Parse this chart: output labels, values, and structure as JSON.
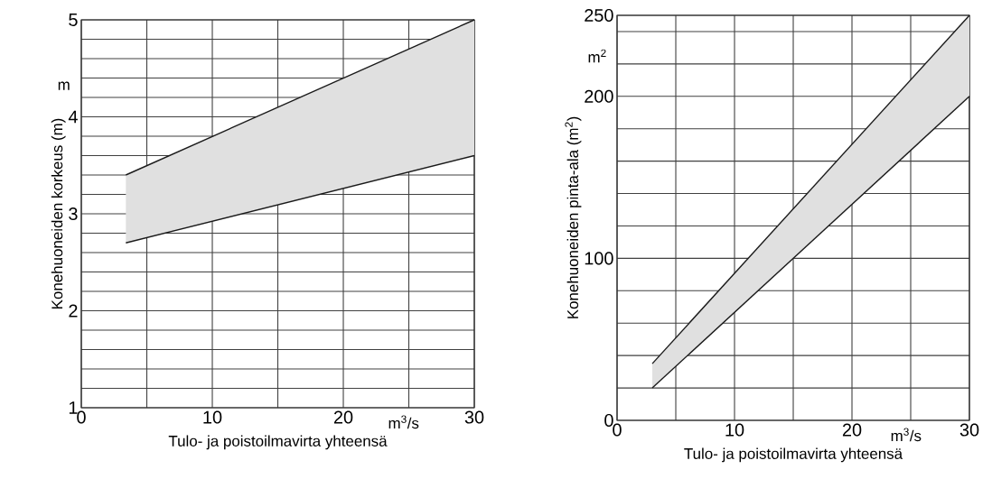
{
  "chart_data": [
    {
      "type": "line",
      "xlabel": "Tulo- ja poistoilmavirta yhteensä",
      "ylabel": "Konehuoneiden korkeus (m)",
      "annotations": [
        "m",
        "m$^{3}$/s"
      ],
      "series": [
        {
          "color": "#1a1a1a",
          "x": [
            3.4,
            30
          ],
          "values": [
            3.4,
            5
          ]
        },
        {
          "color": "#1a1a1a",
          "x": [
            3.4,
            30
          ],
          "values": [
            2.7,
            3.6
          ]
        },
        {
          "color": "#e0e0e0",
          "x": [
            3.4,
            30
          ],
          "values": [
            null,
            null
          ],
          "lower": [
            2.7,
            3.6
          ],
          "upper": [
            3.4,
            5
          ]
        }
      ],
      "xlim": [
        0,
        30
      ],
      "xticks": [
        0,
        {
          "value": 5,
          "label": null
        },
        10,
        {
          "value": 15,
          "label": null
        },
        20,
        {
          "value": 25,
          "label": null
        },
        30
      ],
      "ylim": [
        1,
        5
      ],
      "yticks": [
        1,
        {
          "value": 1.2,
          "label": null
        },
        {
          "value": 1.4,
          "label": null
        },
        {
          "value": 1.6,
          "label": null
        },
        {
          "value": 1.8,
          "label": null
        },
        2,
        {
          "value": 2.2,
          "label": null
        },
        {
          "value": 2.4,
          "label": null
        },
        {
          "value": 2.6,
          "label": null
        },
        {
          "value": 2.8,
          "label": null
        },
        3,
        {
          "value": 3.2,
          "label": null
        },
        {
          "value": 3.4,
          "label": null
        },
        {
          "value": 3.6,
          "label": null
        },
        {
          "value": 3.8,
          "label": null
        },
        4,
        {
          "value": 4.2,
          "label": null
        },
        {
          "value": 4.4,
          "label": null
        },
        {
          "value": 4.6,
          "label": null
        },
        {
          "value": 4.8,
          "label": null
        },
        5
      ],
      "grid": true
    },
    {
      "type": "line",
      "xlabel": "Tulo- ja poistoilmavirta yhteensä",
      "ylabel": "Konehuoneiden pinta-ala (m$^{2}$)",
      "annotations": [
        "m$^{2}$",
        "m$^{3}$/s"
      ],
      "series": [
        {
          "color": "#1a1a1a",
          "x": [
            3,
            30
          ],
          "values": [
            35,
            250
          ]
        },
        {
          "color": "#1a1a1a",
          "x": [
            3,
            30
          ],
          "values": [
            20,
            200
          ]
        },
        {
          "color": "#e0e0e0",
          "x": [
            3,
            30
          ],
          "values": [
            null,
            null
          ],
          "lower": [
            20,
            200
          ],
          "upper": [
            35,
            250
          ]
        }
      ],
      "xlim": [
        0,
        30
      ],
      "xticks": [
        0,
        {
          "value": 5,
          "label": null
        },
        10,
        {
          "value": 15,
          "label": null
        },
        20,
        {
          "value": 25,
          "label": null
        },
        30
      ],
      "ylim": [
        0,
        250
      ],
      "yticks": [
        0,
        {
          "value": 20,
          "label": null
        },
        {
          "value": 40,
          "label": null
        },
        {
          "value": 60,
          "label": null
        },
        {
          "value": 80,
          "label": null
        },
        100,
        {
          "value": 120,
          "label": null
        },
        {
          "value": 140,
          "label": null
        },
        {
          "value": 160,
          "label": null
        },
        {
          "value": 180,
          "label": null
        },
        200,
        {
          "value": 220,
          "label": null
        },
        {
          "value": 240,
          "label": null
        },
        250
      ],
      "grid": true
    }
  ]
}
